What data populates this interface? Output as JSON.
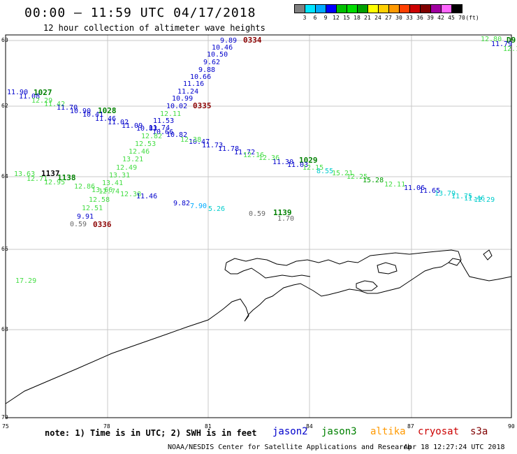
{
  "header": {
    "title": "00:00 — 11:59 UTC 04/17/2018",
    "subtitle": "12 hour collection of altimeter wave heights"
  },
  "legend": {
    "colors": [
      "#808080",
      "#00e5ff",
      "#00aaff",
      "#0000ff",
      "#00c000",
      "#00dd00",
      "#00a000",
      "#ffff00",
      "#ffd000",
      "#ff9900",
      "#ff4000",
      "#cc0000",
      "#800000",
      "#a000a0",
      "#ff66ff",
      "#000000"
    ],
    "labels": [
      "3",
      "6",
      "9",
      "12",
      "15",
      "18",
      "21",
      "24",
      "27",
      "30",
      "33",
      "36",
      "39",
      "42",
      "45",
      "70",
      "(ft)"
    ]
  },
  "map": {
    "lat_labels": [
      "60",
      "62",
      "64",
      "66",
      "68",
      "70"
    ],
    "lon_labels": [
      "75",
      "78",
      "81",
      "84",
      "87",
      "90"
    ]
  },
  "passes": [
    {
      "text": "0334",
      "color": "#8b0000"
    },
    {
      "text": "0335",
      "color": "#8b0000"
    },
    {
      "text": "0336",
      "color": "#8b0000"
    },
    {
      "text": "1027",
      "color": "#008000"
    },
    {
      "text": "1028",
      "color": "#008000"
    },
    {
      "text": "1029",
      "color": "#008000"
    },
    {
      "text": "1137",
      "color": "#000000"
    },
    {
      "text": "1138",
      "color": "#008000"
    },
    {
      "text": "1139",
      "color": "#008000"
    },
    {
      "text": "D9",
      "color": "#008000"
    }
  ],
  "observations": [
    {
      "text": "9.89",
      "color": "#0000cc"
    },
    {
      "text": "10.46",
      "color": "#0000cc"
    },
    {
      "text": "10.50",
      "color": "#0000cc"
    },
    {
      "text": "9.62",
      "color": "#0000cc"
    },
    {
      "text": "9.88",
      "color": "#0000cc"
    },
    {
      "text": "10.66",
      "color": "#0000cc"
    },
    {
      "text": "11.16",
      "color": "#0000cc"
    },
    {
      "text": "11.24",
      "color": "#0000cc"
    },
    {
      "text": "10.99",
      "color": "#0000cc"
    },
    {
      "text": "10.02",
      "color": "#0000cc"
    },
    {
      "text": "12.11",
      "color": "#44dd44"
    },
    {
      "text": "11.53",
      "color": "#0000cc"
    },
    {
      "text": "10.82",
      "color": "#0000cc"
    },
    {
      "text": "10.47",
      "color": "#0000cc"
    },
    {
      "text": "11.73",
      "color": "#0000cc"
    },
    {
      "text": "11.78",
      "color": "#0000cc"
    },
    {
      "text": "11.72",
      "color": "#0000cc"
    },
    {
      "text": "12.16",
      "color": "#44dd44"
    },
    {
      "text": "12.36",
      "color": "#44dd44"
    },
    {
      "text": "11.30",
      "color": "#0000cc"
    },
    {
      "text": "11.03",
      "color": "#0000cc"
    },
    {
      "text": "12.15",
      "color": "#44dd44"
    },
    {
      "text": "8.55",
      "color": "#00cccc"
    },
    {
      "text": "15.21",
      "color": "#44dd44"
    },
    {
      "text": "12.25",
      "color": "#44dd44"
    },
    {
      "text": "15.28",
      "color": "#00a000"
    },
    {
      "text": "12.11",
      "color": "#44dd44"
    },
    {
      "text": "11.06",
      "color": "#0000cc"
    },
    {
      "text": "11.65",
      "color": "#0000cc"
    },
    {
      "text": "13.79",
      "color": "#00cccc"
    },
    {
      "text": "11.75",
      "color": "#00cccc"
    },
    {
      "text": "11.46",
      "color": "#00cccc"
    },
    {
      "text": "12.29",
      "color": "#00cccc"
    },
    {
      "text": "11.90",
      "color": "#0000cc"
    },
    {
      "text": "11.08",
      "color": "#0000cc"
    },
    {
      "text": "12.29",
      "color": "#44dd44"
    },
    {
      "text": "11.42",
      "color": "#44dd44"
    },
    {
      "text": "11.70",
      "color": "#0000cc"
    },
    {
      "text": "10.90",
      "color": "#0000cc"
    },
    {
      "text": "10.41",
      "color": "#0000cc"
    },
    {
      "text": "11.46",
      "color": "#0000cc"
    },
    {
      "text": "11.02",
      "color": "#0000cc"
    },
    {
      "text": "11.09",
      "color": "#0000cc"
    },
    {
      "text": "10.83",
      "color": "#0000cc"
    },
    {
      "text": "11.74",
      "color": "#0000cc"
    },
    {
      "text": "10.66",
      "color": "#0000cc"
    },
    {
      "text": "12.82",
      "color": "#44dd44"
    },
    {
      "text": "12.53",
      "color": "#44dd44"
    },
    {
      "text": "12.46",
      "color": "#44dd44"
    },
    {
      "text": "13.21",
      "color": "#44dd44"
    },
    {
      "text": "12.49",
      "color": "#44dd44"
    },
    {
      "text": "13.31",
      "color": "#44dd44"
    },
    {
      "text": "13.41",
      "color": "#44dd44"
    },
    {
      "text": "12.74",
      "color": "#44dd44"
    },
    {
      "text": "12.38",
      "color": "#44dd44"
    },
    {
      "text": "12.58",
      "color": "#44dd44"
    },
    {
      "text": "12.51",
      "color": "#44dd44"
    },
    {
      "text": "9.91",
      "color": "#0000cc"
    },
    {
      "text": "0.59",
      "color": "#666666"
    },
    {
      "text": "13.63",
      "color": "#44dd44"
    },
    {
      "text": "12.71",
      "color": "#44dd44"
    },
    {
      "text": "12.95",
      "color": "#44dd44"
    },
    {
      "text": "12.86",
      "color": "#44dd44"
    },
    {
      "text": "13.66",
      "color": "#44dd44"
    },
    {
      "text": "11.46",
      "color": "#0000cc"
    },
    {
      "text": "9.82",
      "color": "#0000cc"
    },
    {
      "text": "7.90",
      "color": "#00aaff"
    },
    {
      "text": "5.26",
      "color": "#00cccc"
    },
    {
      "text": "0.59",
      "color": "#666666"
    },
    {
      "text": "1.70",
      "color": "#666666"
    },
    {
      "text": "12.38",
      "color": "#44dd44"
    },
    {
      "text": "17.29",
      "color": "#44dd44"
    },
    {
      "text": "12.80",
      "color": "#44dd44"
    },
    {
      "text": "11.79",
      "color": "#0000cc"
    },
    {
      "text": "12.1",
      "color": "#44dd44"
    }
  ],
  "footer": {
    "note": "note: 1) Time is in UTC; 2) SWH is in feet",
    "satellites": [
      {
        "name": "jason2",
        "color": "#0000cc"
      },
      {
        "name": "jason3",
        "color": "#008000"
      },
      {
        "name": "altika",
        "color": "#ff9900"
      },
      {
        "name": "cryosat",
        "color": "#cc0000"
      },
      {
        "name": "s3a",
        "color": "#800000"
      }
    ],
    "credit": "NOAA/NESDIS Center for Satellite Applications and Research",
    "timestamp": "Apr 18 12:27:24 UTC 2018"
  }
}
